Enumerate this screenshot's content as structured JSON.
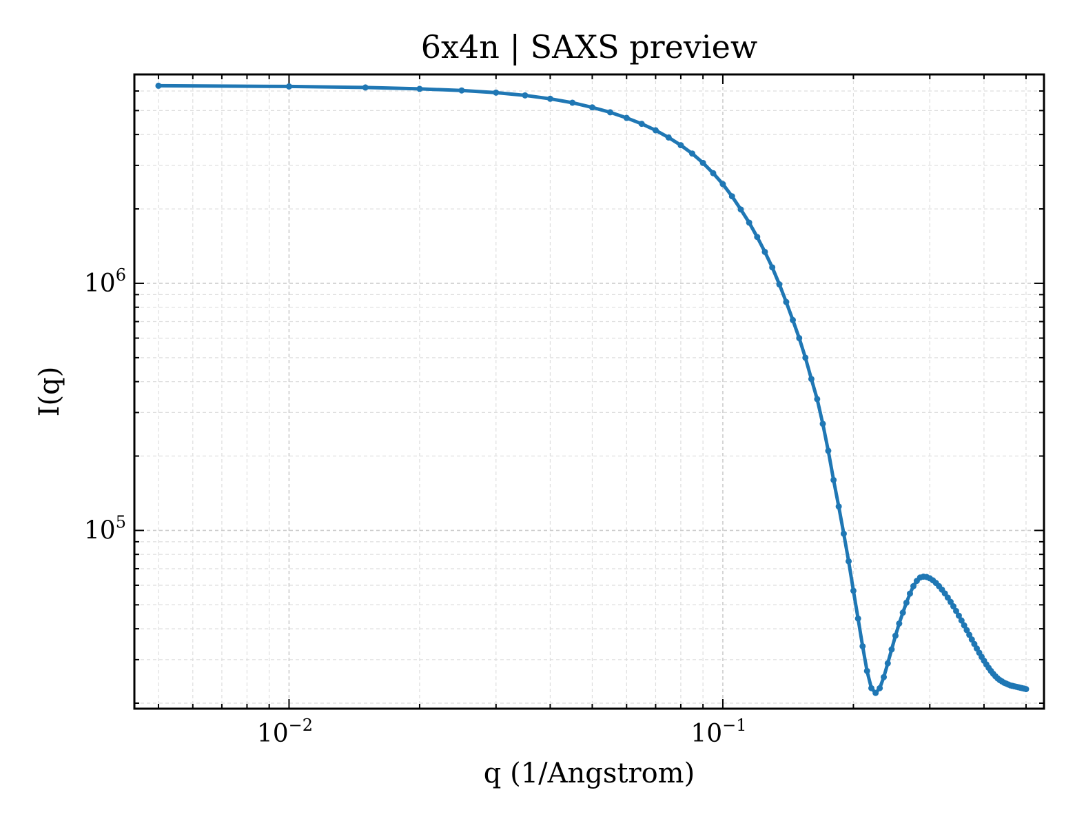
{
  "chart_data": {
    "type": "line",
    "title": "6x4n | SAXS preview",
    "xlabel": "q (1/Angstrom)",
    "ylabel": "I(q)",
    "xscale": "log",
    "yscale": "log",
    "xlim": [
      0.0044,
      0.55
    ],
    "ylim": [
      19000,
      7000000
    ],
    "grid": true,
    "legend": "none",
    "series_color": "#1f77b4",
    "x_ticks": [
      {
        "value": 0.01,
        "base": "10",
        "exponent": "−2"
      },
      {
        "value": 0.1,
        "base": "10",
        "exponent": "−1"
      }
    ],
    "y_ticks": [
      {
        "value": 100000,
        "base": "10",
        "exponent": "5"
      },
      {
        "value": 1000000,
        "base": "10",
        "exponent": "6"
      }
    ],
    "series": [
      {
        "x": [
          0.005,
          0.01,
          0.015,
          0.02,
          0.025,
          0.03,
          0.035,
          0.04,
          0.045,
          0.05,
          0.055,
          0.06,
          0.065,
          0.07,
          0.075,
          0.08,
          0.085,
          0.09,
          0.095,
          0.1,
          0.105,
          0.11,
          0.115,
          0.12,
          0.125,
          0.13,
          0.135,
          0.14,
          0.145,
          0.15,
          0.155,
          0.16,
          0.165,
          0.17,
          0.175,
          0.18,
          0.185,
          0.19,
          0.195,
          0.2,
          0.205,
          0.21,
          0.215,
          0.22,
          0.225,
          0.23,
          0.235,
          0.24,
          0.245,
          0.25,
          0.255,
          0.26,
          0.265,
          0.27,
          0.275,
          0.28,
          0.285,
          0.29,
          0.295,
          0.3,
          0.305,
          0.31,
          0.315,
          0.32,
          0.325,
          0.33,
          0.335,
          0.34,
          0.345,
          0.35,
          0.355,
          0.36,
          0.365,
          0.37,
          0.375,
          0.38,
          0.385,
          0.39,
          0.395,
          0.4,
          0.405,
          0.41,
          0.415,
          0.42,
          0.425,
          0.43,
          0.435,
          0.44,
          0.445,
          0.45,
          0.455,
          0.46,
          0.465,
          0.47,
          0.475,
          0.48,
          0.485,
          0.49,
          0.495,
          0.5
        ],
        "y": [
          6300000,
          6260000,
          6200000,
          6120000,
          6030000,
          5910000,
          5760000,
          5580000,
          5380000,
          5150000,
          4920000,
          4670000,
          4420000,
          4160000,
          3890000,
          3620000,
          3350000,
          3070000,
          2790000,
          2520000,
          2250000,
          1990000,
          1760000,
          1540000,
          1340000,
          1160000,
          990000,
          840000,
          710000,
          600000,
          500000,
          410000,
          340000,
          270000,
          210000,
          160000,
          125000,
          97000,
          75000,
          57000,
          44000,
          34000,
          27000,
          23000,
          22000,
          23000,
          25500,
          29000,
          33000,
          37500,
          42000,
          46500,
          51000,
          55500,
          59500,
          62500,
          64500,
          65000,
          64800,
          64000,
          62800,
          61300,
          59500,
          57600,
          55600,
          53500,
          51400,
          49300,
          47200,
          45200,
          43200,
          41300,
          39500,
          37800,
          36200,
          34700,
          33300,
          32000,
          30800,
          29700,
          28700,
          27800,
          27000,
          26300,
          25700,
          25200,
          24800,
          24500,
          24200,
          24000,
          23800,
          23600,
          23500,
          23400,
          23300,
          23200,
          23100,
          23000,
          22900,
          22800
        ]
      }
    ]
  }
}
